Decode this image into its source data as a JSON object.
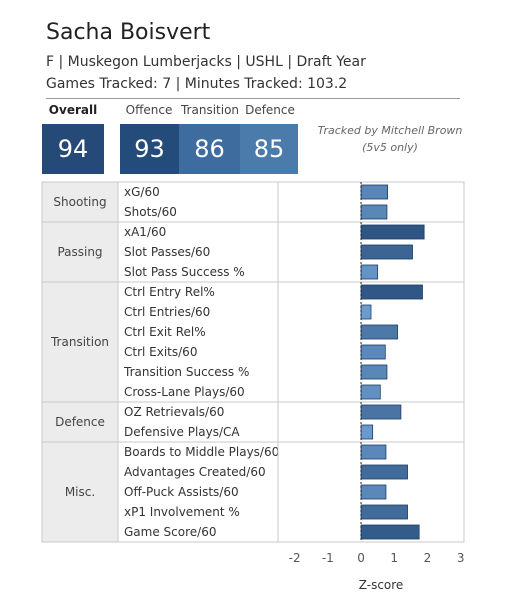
{
  "header": {
    "player_name": "Sacha Boisvert",
    "subtitle": "F | Muskegon Lumberjacks | USHL | Draft Year",
    "tracked_line": "Games Tracked: 7 | Minutes Tracked: 103.2"
  },
  "scores": {
    "overall_label": "Overall",
    "overall": "94",
    "offence_label": "Offence",
    "offence": "93",
    "transition_label": "Transition",
    "transition": "86",
    "defence_label": "Defence",
    "defence": "85"
  },
  "note": "Tracked by Mitchell Brown (5v5 only)",
  "colors": {
    "bar_dark": "#2e5583",
    "bar_mid": "#4a76a8",
    "bar_light": "#6c9ccf",
    "cat_bg": "#ececec",
    "overall_box": "#254a78"
  },
  "chart_data": {
    "type": "bar",
    "orientation": "horizontal",
    "xlabel": "Z-score",
    "xlim": [
      -2.5,
      3.1
    ],
    "xticks": [
      -2,
      -1,
      0,
      1,
      2,
      3
    ],
    "zero_line": "dashed",
    "groups": [
      {
        "name": "Shooting",
        "metrics": [
          {
            "label": "xG/60",
            "value": 0.8
          },
          {
            "label": "Shots/60",
            "value": 0.78
          }
        ]
      },
      {
        "name": "Passing",
        "metrics": [
          {
            "label": "xA1/60",
            "value": 1.9
          },
          {
            "label": "Slot Passes/60",
            "value": 1.55
          },
          {
            "label": "Slot Pass Success %",
            "value": 0.5
          }
        ]
      },
      {
        "name": "Transition",
        "metrics": [
          {
            "label": "Ctrl Entry Rel%",
            "value": 1.85
          },
          {
            "label": "Ctrl Entries/60",
            "value": 0.3
          },
          {
            "label": "Ctrl Exit Rel%",
            "value": 1.1
          },
          {
            "label": "Ctrl Exits/60",
            "value": 0.73
          },
          {
            "label": "Transition Success %",
            "value": 0.78
          },
          {
            "label": "Cross-Lane Plays/60",
            "value": 0.58
          }
        ]
      },
      {
        "name": "Defence",
        "metrics": [
          {
            "label": "OZ Retrievals/60",
            "value": 1.2
          },
          {
            "label": "Defensive Plays/CA",
            "value": 0.35
          }
        ]
      },
      {
        "name": "Misc.",
        "metrics": [
          {
            "label": "Boards to Middle Plays/60",
            "value": 0.75
          },
          {
            "label": "Advantages Created/60",
            "value": 1.4
          },
          {
            "label": "Off-Puck Assists/60",
            "value": 0.75
          },
          {
            "label": "xP1 Involvement %",
            "value": 1.4
          },
          {
            "label": "Game Score/60",
            "value": 1.75
          }
        ]
      }
    ]
  }
}
